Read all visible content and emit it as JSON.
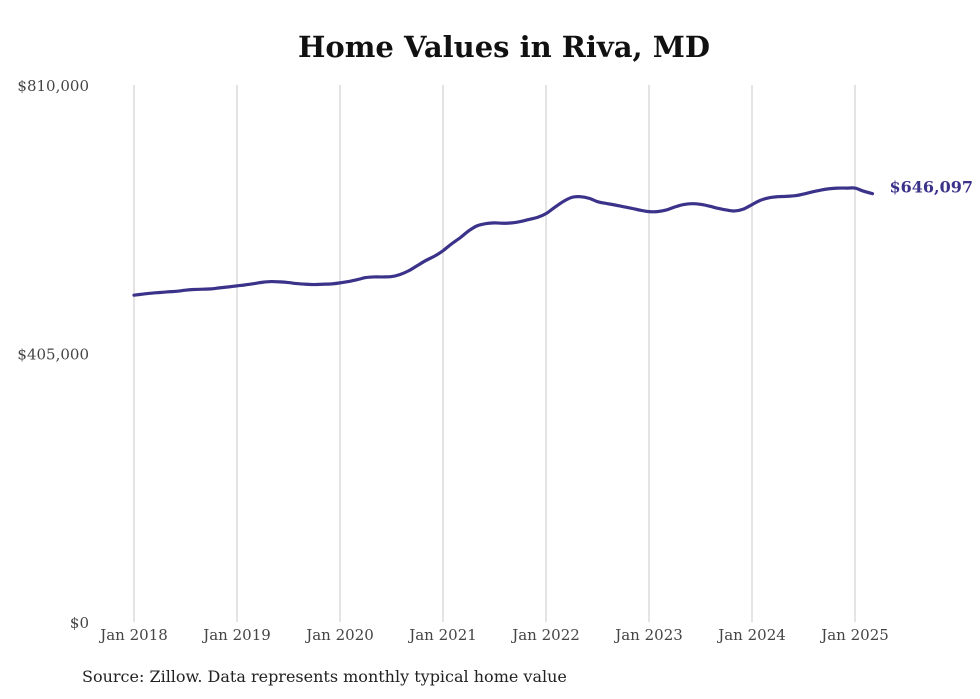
{
  "chart_data": {
    "type": "line",
    "title": "Home Values in Riva, MD",
    "source": "Source: Zillow. Data represents monthly typical home value",
    "y_ticks": [
      "$0",
      "$405,000",
      "$810,000"
    ],
    "x_ticks": [
      "Jan 2018",
      "Jan 2019",
      "Jan 2020",
      "Jan 2021",
      "Jan 2022",
      "Jan 2023",
      "Jan 2024",
      "Jan 2025"
    ],
    "ylim": [
      0,
      810000
    ],
    "xlim": [
      2018.0,
      2025.25
    ],
    "grid": "vertical",
    "end_label": "$646,097",
    "series": [
      {
        "color": "#3b328a",
        "x": [
          2018.0,
          2018.08,
          2018.17,
          2018.25,
          2018.33,
          2018.42,
          2018.5,
          2018.58,
          2018.67,
          2018.75,
          2018.83,
          2018.92,
          2019.0,
          2019.08,
          2019.17,
          2019.25,
          2019.33,
          2019.42,
          2019.5,
          2019.58,
          2019.67,
          2019.75,
          2019.83,
          2019.92,
          2020.0,
          2020.08,
          2020.17,
          2020.25,
          2020.33,
          2020.42,
          2020.5,
          2020.58,
          2020.67,
          2020.75,
          2020.83,
          2020.92,
          2021.0,
          2021.08,
          2021.17,
          2021.25,
          2021.33,
          2021.42,
          2021.5,
          2021.58,
          2021.67,
          2021.75,
          2021.83,
          2021.92,
          2022.0,
          2022.08,
          2022.17,
          2022.25,
          2022.33,
          2022.42,
          2022.5,
          2022.58,
          2022.67,
          2022.75,
          2022.83,
          2022.92,
          2023.0,
          2023.08,
          2023.17,
          2023.25,
          2023.33,
          2023.42,
          2023.5,
          2023.58,
          2023.67,
          2023.75,
          2023.83,
          2023.92,
          2024.0,
          2024.08,
          2024.17,
          2024.25,
          2024.33,
          2024.42,
          2024.5,
          2024.58,
          2024.67,
          2024.75,
          2024.83,
          2024.92,
          2025.0,
          2025.08,
          2025.17
        ],
        "y": [
          493000,
          494500,
          496000,
          497000,
          498000,
          499000,
          500500,
          501500,
          502000,
          502500,
          504000,
          505500,
          507000,
          508500,
          510500,
          512500,
          513500,
          513000,
          512000,
          510500,
          509500,
          509000,
          509500,
          510000,
          511500,
          513500,
          516500,
          519500,
          520500,
          520500,
          521000,
          524000,
          530000,
          537500,
          545000,
          552000,
          560000,
          570000,
          580000,
          590000,
          597500,
          601000,
          602000,
          601500,
          602000,
          604000,
          607000,
          610500,
          616000,
          625000,
          634500,
          640500,
          641500,
          639000,
          634000,
          631500,
          629000,
          626500,
          624000,
          621000,
          619000,
          619000,
          621500,
          626000,
          629500,
          631000,
          630000,
          627500,
          624000,
          621500,
          620000,
          623000,
          629500,
          636000,
          640000,
          641500,
          642000,
          643000,
          645500,
          648500,
          651500,
          653500,
          654500,
          654500,
          654500,
          650000,
          646097
        ]
      }
    ]
  }
}
